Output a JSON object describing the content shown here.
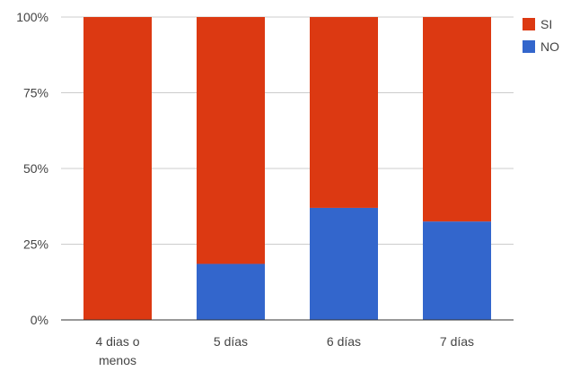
{
  "chart_data": {
    "type": "bar",
    "stacked": true,
    "percent": true,
    "categories": [
      [
        "4 dias o",
        "menos"
      ],
      [
        "5 días"
      ],
      [
        "6 días"
      ],
      [
        "7 días"
      ]
    ],
    "series": [
      {
        "name": "NO",
        "color": "#3366cc",
        "values": [
          0,
          18.5,
          37,
          32.5
        ]
      },
      {
        "name": "SI",
        "color": "#dc3912",
        "values": [
          100,
          81.5,
          63,
          67.5
        ]
      }
    ],
    "yticks": [
      "0%",
      "25%",
      "50%",
      "75%",
      "100%"
    ],
    "ylim": [
      0,
      100
    ],
    "grid": true,
    "legend": {
      "position": "right",
      "order": [
        "SI",
        "NO"
      ]
    }
  }
}
